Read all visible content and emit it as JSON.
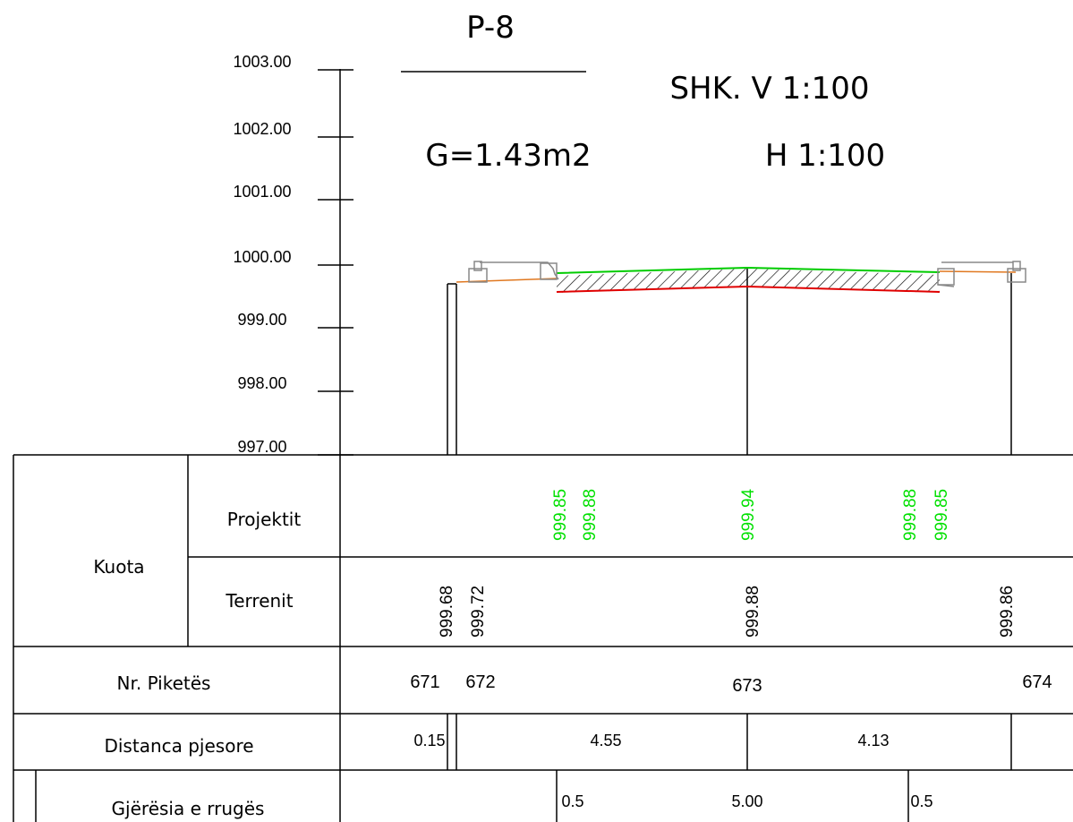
{
  "title": {
    "profile_id": "P-8",
    "area": "G=1.43m2",
    "scale_vertical": "SHK. V 1:100",
    "scale_horizontal": "H 1:100"
  },
  "elevation_scale": {
    "labels": [
      "1003.00",
      "1002.00",
      "1001.00",
      "1000.00",
      "999.00",
      "998.00",
      "997.00"
    ]
  },
  "table": {
    "kuota_label": "Kuota",
    "projektit_label": "Projektit",
    "terrenit_label": "Terrenit",
    "piketes_label": "Nr. Piketës",
    "distanca_label": "Distanca pjesore",
    "gjeresia_label": "Gjërësia e rrugës",
    "projektit_values": [
      "999.85",
      "999.88",
      "999.94",
      "999.88",
      "999.85"
    ],
    "terrenit_values": [
      "999.68",
      "999.72",
      "999.88",
      "999.86"
    ],
    "piketes_values": [
      "671",
      "672",
      "673",
      "674"
    ],
    "distanca_values": [
      "0.15",
      "4.55",
      "4.13"
    ],
    "gjeresia_values": [
      "0.5",
      "5.00",
      "0.5"
    ]
  },
  "colors": {
    "design_line": "#00cc00",
    "subgrade_line": "#e00000",
    "terrain_line": "#e07820",
    "design_text": "#00e000",
    "curb": "#888888",
    "ink": "#000000"
  }
}
